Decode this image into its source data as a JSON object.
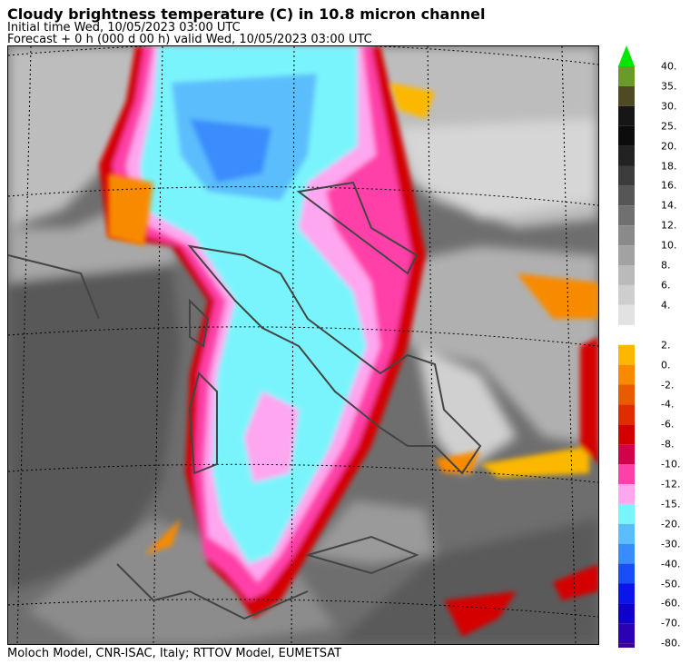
{
  "header": {
    "title": "Cloudy brightness temperature (C) in   10.8 micron channel",
    "initial_time": "Initial time  Wed, 10/05/2023  03:00 UTC",
    "forecast": "Forecast  +   0 h  (000 d 00 h)  valid Wed, 10/05/2023 03:00 UTC"
  },
  "footer": {
    "credit": "Moloch Model, CNR-ISAC, Italy; RTTOV Model, EUMETSAT"
  },
  "legend": {
    "warm_group": [
      {
        "label": "40.",
        "color": "#6a9a2a"
      },
      {
        "label": "35.",
        "color": "#4e4a24"
      },
      {
        "label": "30.",
        "color": "#161616"
      },
      {
        "label": "25.",
        "color": "#0c0c0c"
      },
      {
        "label": "20.",
        "color": "#222222"
      },
      {
        "label": "18.",
        "color": "#3c3c3c"
      },
      {
        "label": "16.",
        "color": "#565656"
      },
      {
        "label": "14.",
        "color": "#707070"
      },
      {
        "label": "12.",
        "color": "#8a8a8a"
      },
      {
        "label": "10.",
        "color": "#a2a2a2"
      },
      {
        "label": "8.",
        "color": "#bababa"
      },
      {
        "label": "6.",
        "color": "#cecece"
      },
      {
        "label": "4.",
        "color": "#e2e2e2"
      }
    ],
    "cold_group": [
      {
        "label": "2.",
        "color": "#fcb800"
      },
      {
        "label": "0.",
        "color": "#f88a00"
      },
      {
        "label": "-2.",
        "color": "#ec5a00"
      },
      {
        "label": "-4.",
        "color": "#e02c00"
      },
      {
        "label": "-6.",
        "color": "#d40000"
      },
      {
        "label": "-8.",
        "color": "#d4004a"
      },
      {
        "label": "-10.",
        "color": "#ff40a8"
      },
      {
        "label": "-12.",
        "color": "#ffa6f0"
      },
      {
        "label": "-15.",
        "color": "#7af4fc"
      },
      {
        "label": "-20.",
        "color": "#5cbdfc"
      },
      {
        "label": "-30.",
        "color": "#3a8cfc"
      },
      {
        "label": "-40.",
        "color": "#1a4cf8"
      },
      {
        "label": "-50.",
        "color": "#0a14ec"
      },
      {
        "label": "-60.",
        "color": "#1000cc"
      },
      {
        "label": "-70.",
        "color": "#2c00b4"
      },
      {
        "label": "-80.",
        "color": "#3c0098"
      }
    ],
    "top_arrow_color": "#00e800",
    "bottom_arrow_color": "#3c0098"
  }
}
